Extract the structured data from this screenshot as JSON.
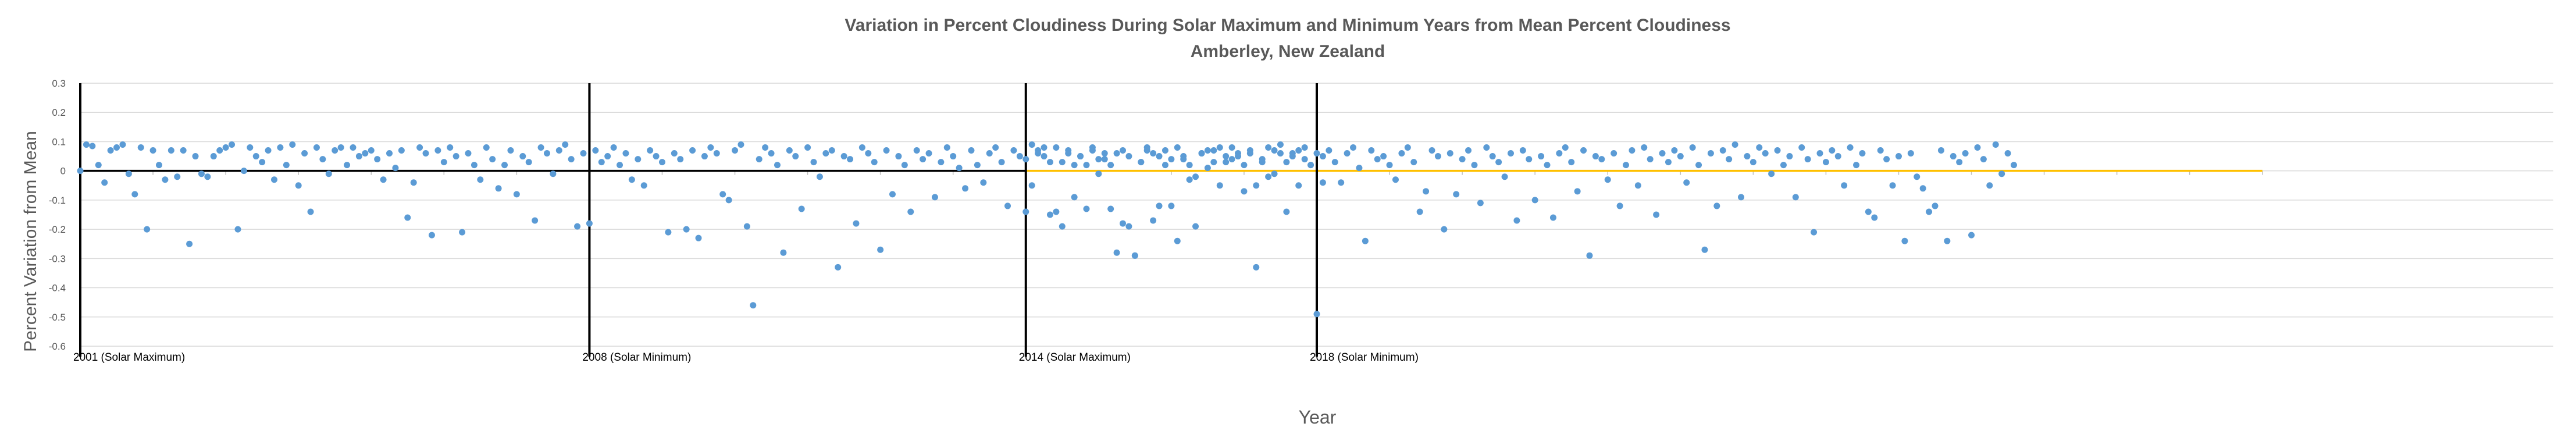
{
  "chart_data": {
    "type": "scatter",
    "title": "Variation in Percent Cloudiness During Solar Maximum and Minimum Years from Mean Percent Cloudiness",
    "subtitle": "Amberley, New Zealand",
    "xlabel": "Year",
    "ylabel": "Percent Variation from Mean",
    "ylim": [
      -0.6,
      0.3
    ],
    "yticks": [
      "0.3",
      "0.2",
      "0.1",
      "0",
      "-0.1",
      "-0.2",
      "-0.3",
      "-0.4",
      "-0.5",
      "-0.6"
    ],
    "grid": true,
    "legend": "none",
    "colors": {
      "points": "#5B9BD5",
      "zero_line_main": "#000000",
      "zero_line_recent": "#FFC000",
      "grid": "#D9D9D9",
      "markers": "#000000"
    },
    "vertical_markers": [
      {
        "month_index": 0,
        "label": "2001 (Solar Maximum)"
      },
      {
        "month_index": 84,
        "label": "2008 (Solar Minimum)"
      },
      {
        "month_index": 156,
        "label": "2014 (Solar Maximum)"
      },
      {
        "month_index": 204,
        "label": "2018 (Solar Minimum)"
      }
    ],
    "x_span_months": [
      0,
      408
    ],
    "series": [
      {
        "x_start_month": 0,
        "values": [
          0.0,
          0.09,
          0.085,
          0.02,
          -0.04,
          0.07,
          0.08,
          0.09,
          -0.01,
          -0.08,
          0.08,
          -0.2,
          0.07,
          0.02,
          -0.03,
          0.07,
          -0.02,
          0.07,
          -0.25,
          0.05,
          -0.01,
          -0.02,
          0.05,
          0.07,
          0.08,
          0.09,
          -0.2,
          0.0,
          0.08,
          0.05,
          0.03,
          0.07,
          -0.03,
          0.08,
          0.02,
          0.09,
          -0.05,
          0.06,
          -0.14,
          0.08,
          0.04,
          -0.01,
          0.07,
          0.08,
          0.02,
          0.08,
          0.05,
          0.06,
          0.07,
          0.04,
          -0.03,
          0.06,
          0.01,
          0.07,
          -0.16,
          -0.04,
          0.08,
          0.06,
          -0.22,
          0.07,
          0.03,
          0.08,
          0.05,
          -0.21,
          0.06,
          0.02,
          -0.03,
          0.08,
          0.04,
          -0.06,
          0.02,
          0.07,
          -0.08,
          0.05,
          0.03,
          -0.17,
          0.08,
          0.06,
          -0.01,
          0.07,
          0.09,
          0.04,
          -0.19,
          0.06,
          -0.18,
          0.07,
          0.03,
          0.05,
          0.08,
          0.02,
          0.06,
          -0.03,
          0.04,
          -0.05,
          0.07,
          0.05,
          0.03,
          -0.21,
          0.06,
          0.04,
          -0.2,
          0.07,
          -0.23,
          0.05,
          0.08,
          0.06,
          -0.08,
          -0.1,
          0.07,
          0.09,
          -0.19,
          -0.46,
          0.04,
          0.08,
          0.06,
          0.02,
          -0.28,
          0.07,
          0.05,
          -0.13,
          0.08,
          0.03,
          -0.02,
          0.06,
          0.07,
          -0.33,
          0.05,
          0.04,
          -0.18,
          0.08,
          0.06,
          0.03,
          -0.27,
          0.07,
          -0.08,
          0.05,
          0.02,
          -0.14,
          0.07,
          0.04,
          0.06,
          -0.09,
          0.03,
          0.08,
          0.05,
          0.01,
          -0.06,
          0.07,
          0.02,
          -0.04,
          0.06,
          0.08,
          0.03,
          -0.12,
          0.07,
          0.05,
          0.04,
          -0.05,
          0.06,
          0.08,
          0.03,
          -0.14,
          -0.19,
          0.07,
          0.02,
          0.05,
          -0.13,
          0.08,
          0.04,
          0.06,
          0.02,
          -0.28,
          0.07,
          0.05,
          -0.29,
          0.03,
          0.08,
          0.06,
          -0.12,
          0.07,
          0.04,
          -0.24,
          0.05,
          0.02,
          -0.19,
          0.06,
          0.07,
          0.03,
          0.08,
          0.05,
          0.04,
          0.06,
          0.02,
          0.07,
          -0.05,
          0.03,
          0.08,
          -0.01,
          0.06,
          -0.14,
          0.05,
          0.07,
          0.04,
          0.02,
          0.06,
          -0.04
        ]
      },
      {
        "x_start_month": 156,
        "values": [
          -0.14,
          0.09,
          0.07,
          0.05,
          -0.15,
          0.08,
          0.03,
          0.06,
          -0.09,
          0.05,
          0.02,
          0.07,
          -0.01,
          0.04,
          -0.13,
          0.06,
          -0.18,
          -0.19,
          -0.29,
          0.03,
          0.07,
          -0.17,
          0.05,
          0.02,
          -0.12,
          0.08,
          0.04,
          -0.03,
          -0.02,
          0.06,
          0.01,
          0.07,
          -0.05,
          0.03,
          0.08,
          0.05,
          -0.07,
          0.06,
          -0.33,
          0.04,
          -0.02,
          0.07,
          0.09,
          0.03,
          0.06,
          -0.05,
          0.08,
          0.02,
          -0.49,
          0.05,
          0.07,
          0.03,
          -0.04,
          0.06,
          0.08,
          0.01,
          -0.24,
          0.07,
          0.04,
          0.05,
          0.02,
          -0.03,
          0.06,
          0.08,
          0.03,
          -0.14,
          -0.07,
          0.07,
          0.05,
          -0.2,
          0.06,
          -0.08,
          0.04,
          0.07,
          0.02,
          -0.11,
          0.08,
          0.05,
          0.03,
          -0.02,
          0.06,
          -0.17,
          0.07,
          0.04,
          -0.1,
          0.05,
          0.02,
          -0.16,
          0.06,
          0.08,
          0.03,
          -0.07,
          0.07,
          -0.29,
          0.05,
          0.04,
          -0.03,
          0.06,
          -0.12,
          0.02,
          0.07,
          -0.05,
          0.08,
          0.04,
          -0.15,
          0.06,
          0.03,
          0.07,
          0.05,
          -0.04,
          0.08,
          0.02,
          -0.27,
          0.06,
          -0.12,
          0.07,
          0.04,
          0.09,
          -0.09,
          0.05,
          0.03,
          0.08,
          0.06,
          -0.01,
          0.07,
          0.02,
          0.05,
          -0.09,
          0.08,
          0.04,
          -0.21,
          0.06,
          0.03,
          0.07,
          0.05,
          -0.05,
          0.08,
          0.02,
          0.06,
          -0.14,
          -0.16,
          0.07,
          0.04,
          -0.05,
          0.05,
          -0.24,
          0.06,
          -0.02,
          -0.06,
          -0.14,
          -0.12,
          0.07,
          -0.24,
          0.05,
          0.03,
          0.06,
          -0.22,
          0.08,
          0.04,
          -0.05,
          0.09,
          -0.01,
          0.06,
          0.02
        ]
      }
    ]
  },
  "x_tick_labels": [
    "2001 (Solar Maximum)",
    "2008 (Solar Minimum)",
    "2014 (Solar Maximum)",
    "2018 (Solar Minimum)"
  ]
}
